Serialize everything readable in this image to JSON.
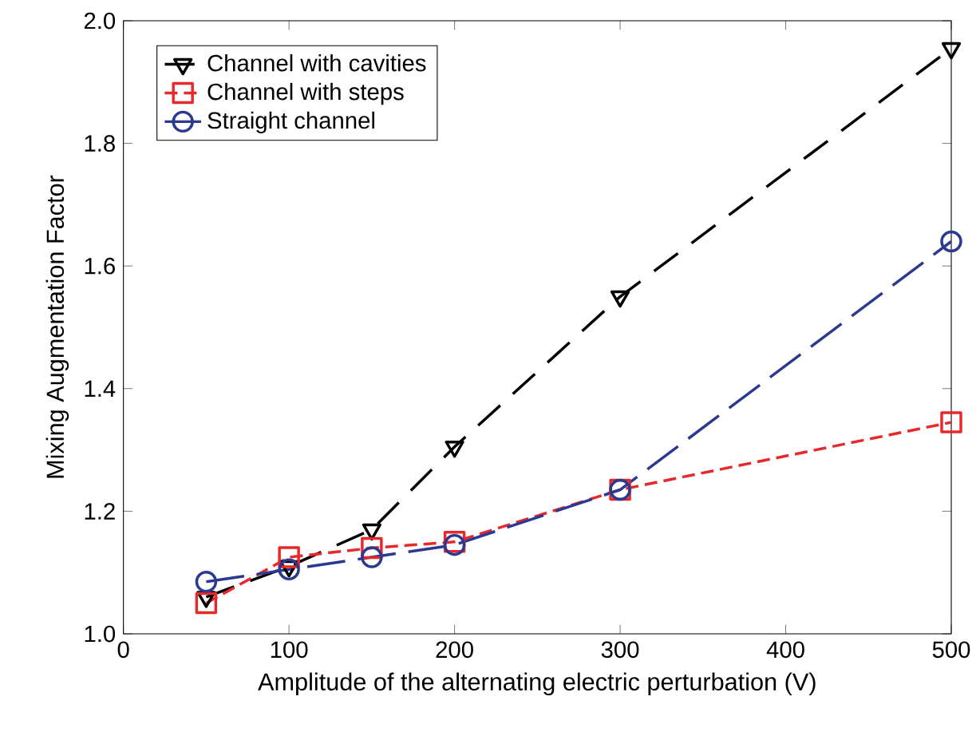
{
  "chart_data": {
    "type": "line",
    "xlabel": "Amplitude of the alternating electric perturbation (V)",
    "ylabel": "Mixing Augmentation Factor",
    "x": [
      50,
      100,
      150,
      200,
      300,
      500
    ],
    "series": [
      {
        "name": "Channel with cavities",
        "color": "#000000",
        "marker": "triangle",
        "line_style": "dashed",
        "values": [
          1.06,
          1.11,
          1.17,
          1.305,
          1.55,
          1.955
        ]
      },
      {
        "name": "Channel with steps",
        "color": "#e8292b",
        "marker": "square",
        "line_style": "dashed",
        "values": [
          1.05,
          1.125,
          1.14,
          1.15,
          1.235,
          1.345
        ]
      },
      {
        "name": "Straight channel",
        "color": "#2b3990",
        "marker": "circle",
        "line_style": "dashed",
        "values": [
          1.085,
          1.105,
          1.125,
          1.145,
          1.235,
          1.64
        ]
      }
    ],
    "xlim": [
      0,
      500
    ],
    "xticks": [
      0,
      100,
      200,
      300,
      400,
      500
    ],
    "ylim": [
      1,
      2
    ],
    "yticks": [
      {
        "value": 1,
        "label": "1.0"
      },
      {
        "value": 1.2,
        "label": "1.2"
      },
      {
        "value": 1.4,
        "label": "1.4"
      },
      {
        "value": 1.6,
        "label": "1.6"
      },
      {
        "value": 1.8,
        "label": "1.8"
      },
      {
        "value": 2,
        "label": "2.0"
      }
    ],
    "legend": "top left",
    "grid": false
  }
}
